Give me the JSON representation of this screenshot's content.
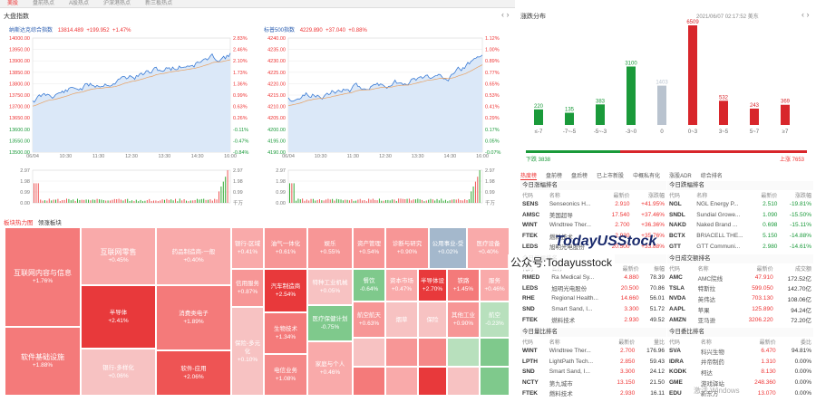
{
  "tabs": [
    "美股",
    "盘前热点",
    "A股热点",
    "沪深港热点",
    "新三板热点"
  ],
  "main_title": "大盘指数",
  "nasdaq": {
    "name": "纳斯达克综合指数",
    "price": "13814.489",
    "change": "+199.952",
    "pct": "+1.47%",
    "y_left": [
      "14000.00",
      "13950.00",
      "13900.00",
      "13850.00",
      "13800.00",
      "13750.00",
      "13700.00",
      "13650.00",
      "13600.00",
      "13550.00",
      "13500.00"
    ],
    "y_right": [
      "2.83%",
      "2.46%",
      "2.10%",
      "1.73%",
      "1.36%",
      "0.99%",
      "0.63%",
      "0.26%",
      "-0.11%",
      "-0.47%",
      "-0.84%"
    ],
    "vol_left": [
      "2.97",
      "1.98",
      "0.99",
      "0.00"
    ],
    "vol_right": [
      "2.97",
      "1.98",
      "0.99",
      "千万"
    ]
  },
  "sp500": {
    "name": "标普500指数",
    "price": "4229.890",
    "change": "+37.040",
    "pct": "+0.88%",
    "y_left": [
      "4240.00",
      "4235.00",
      "4230.00",
      "4225.00",
      "4220.00",
      "4215.00",
      "4210.00",
      "4205.00",
      "4200.00",
      "4195.00",
      "4190.00"
    ],
    "y_right": [
      "1.12%",
      "1.00%",
      "0.89%",
      "0.77%",
      "0.65%",
      "0.53%",
      "0.41%",
      "0.29%",
      "0.17%",
      "0.05%",
      "-0.07%"
    ],
    "vol_left": [
      "2.97",
      "1.98",
      "0.99",
      "0.00"
    ],
    "vol_right": [
      "2.97",
      "1.98",
      "0.99",
      "千万"
    ]
  },
  "x_ticks": [
    "06/04",
    "10:30",
    "11:30",
    "12:30",
    "13:30",
    "14:30",
    "16:00"
  ],
  "sector": {
    "tab1": "板块热力图",
    "tab2": "领涨板块"
  },
  "treemap": [
    {
      "name": "互联网内容与信息",
      "pct": "+1.76%",
      "color": "#f47a7a",
      "big": true
    },
    {
      "name": "软件基础设施",
      "pct": "+1.88%",
      "color": "#f47a7a",
      "big": true
    },
    {
      "name": "互联网零售",
      "pct": "+0.45%",
      "color": "#f9aaaa",
      "big": true
    },
    {
      "name": "半导体",
      "pct": "+2.41%",
      "color": "#e8393b"
    },
    {
      "name": "银行-多样化",
      "pct": "+0.06%",
      "color": "#f7c2c2"
    },
    {
      "name": "药品制造商-一般",
      "pct": "+0.40%",
      "color": "#f9aaaa"
    },
    {
      "name": "消费类电子",
      "pct": "+1.89%",
      "color": "#f47a7a"
    },
    {
      "name": "软件-应用",
      "pct": "+2.06%",
      "color": "#ee5454"
    },
    {
      "name": "银行-区域",
      "pct": "+0.41%",
      "color": "#f9aaaa"
    },
    {
      "name": "信用服务",
      "pct": "+0.87%",
      "color": "#f79696"
    },
    {
      "name": "保险-多元化",
      "pct": "+0.10%",
      "color": "#f7c2c2"
    },
    {
      "name": "油气一体化",
      "pct": "+0.61%",
      "color": "#f79696"
    },
    {
      "name": "汽车制造商",
      "pct": "+2.54%",
      "color": "#e8393b"
    },
    {
      "name": "生物技术",
      "pct": "+1.34%",
      "color": "#f47a7a"
    },
    {
      "name": "电信业务",
      "pct": "+1.08%",
      "color": "#f58888"
    },
    {
      "name": "娱乐",
      "pct": "+0.55%",
      "color": "#f79696"
    },
    {
      "name": "特种工业机械",
      "pct": "+0.05%",
      "color": "#f7c2c2"
    },
    {
      "name": "资产管理",
      "pct": "+0.54%",
      "color": "#f79696"
    },
    {
      "name": "诊断与研究",
      "pct": "+0.90%",
      "color": "#f79696"
    },
    {
      "name": "公用事业-受",
      "pct": "+0.02%",
      "color": "#a4b8cc"
    },
    {
      "name": "医疗设备",
      "pct": "+0.40%",
      "color": "#f9aaaa"
    },
    {
      "name": "餐饮",
      "pct": "-0.64%",
      "color": "#7fc98c"
    },
    {
      "name": "资本市场",
      "pct": "+0.47%",
      "color": "#f9aaaa"
    },
    {
      "name": "医疗保健计划",
      "pct": "-0.75%",
      "color": "#7fc98c"
    },
    {
      "name": "半导体设",
      "pct": "+2.70%",
      "color": "#e8393b"
    },
    {
      "name": "铁路",
      "pct": "+1.45%",
      "color": "#f47a7a"
    },
    {
      "name": "服务",
      "pct": "+0.46%",
      "color": "#f9aaaa"
    },
    {
      "name": "航空航天",
      "pct": "+0.63%",
      "color": "#f79696"
    },
    {
      "name": "家庭与个人",
      "pct": "+0.46%",
      "color": "#f9aaaa"
    },
    {
      "name": "烟草",
      "pct": "",
      "color": "#f7c2c2"
    },
    {
      "name": "保险",
      "pct": "",
      "color": "#f7c2c2"
    },
    {
      "name": "其他工业",
      "pct": "+0.90%",
      "color": "#f79696"
    },
    {
      "name": "航空",
      "pct": "-0.23%",
      "color": "#b8e0bd"
    }
  ],
  "dist": {
    "title": "涨跌分布",
    "datetime": "2021/06/07 02:17:52 美东",
    "bars": [
      {
        "label": "≤-7",
        "value": 220,
        "color": "#1a9a3a"
      },
      {
        "label": "-7~-5",
        "value": 135,
        "color": "#1a9a3a"
      },
      {
        "label": "-5~-3",
        "value": 383,
        "color": "#1a9a3a"
      },
      {
        "label": "-3~0",
        "value": 3100,
        "color": "#1a9a3a"
      },
      {
        "label": "0",
        "value": 1403,
        "color": "#b9c3cf"
      },
      {
        "label": "0~3",
        "value": 6509,
        "color": "#d8262b"
      },
      {
        "label": "3~5",
        "value": 532,
        "color": "#d8262b"
      },
      {
        "label": "5~7",
        "value": 243,
        "color": "#d8262b"
      },
      {
        "label": "≥7",
        "value": 369,
        "color": "#d8262b"
      }
    ],
    "down_label": "下跌 3838",
    "up_label": "上涨 7653"
  },
  "right_tabs": [
    "热度榜",
    "盘前榜",
    "盘后榜",
    "已上市新股",
    "中概私有化",
    "涨股ADR",
    "综合排名"
  ],
  "boxes": [
    {
      "title": "今日涨幅排名",
      "cols": [
        "代码",
        "名称",
        "最新价",
        "涨跌幅"
      ],
      "rows": [
        [
          "SENS",
          "Senseonics H...",
          "2.910",
          "+41.95%"
        ],
        [
          "AMSC",
          "美国超导",
          "17.540",
          "+37.46%"
        ],
        [
          "WINT",
          "Windtree Ther...",
          "2.700",
          "+36.36%"
        ],
        [
          "FTEK",
          "燃料技术",
          "2.930",
          "+35.76%"
        ],
        [
          "LEDS",
          "旭明光电股份",
          "20.500",
          "+33.88%"
        ]
      ]
    },
    {
      "title": "今日跌幅排名",
      "cols": [
        "代码",
        "名称",
        "最新价",
        "涨跌幅"
      ],
      "rows": [
        [
          "NGL",
          "NGL Energy P...",
          "2.510",
          "-19.81%"
        ],
        [
          "SNDL",
          "Sundial Growe...",
          "1.090",
          "-15.50%"
        ],
        [
          "NAKD",
          "Naked Brand ...",
          "0.698",
          "-15.11%"
        ],
        [
          "BCTX",
          "BRIACELL THE...",
          "5.150",
          "-14.88%"
        ],
        [
          "GTT",
          "GTT Communi...",
          "2.980",
          "-14.61%"
        ]
      ]
    },
    {
      "title": "今日振幅排名",
      "cols": [
        "代码",
        "名称",
        "最新价",
        "振幅"
      ],
      "rows": [
        [
          "RMED",
          "Ra Medical Sy...",
          "4.880",
          "78.39"
        ],
        [
          "LEDS",
          "旭明光电股份",
          "20.500",
          "70.86"
        ],
        [
          "RHE",
          "Regional Health...",
          "14.660",
          "56.01"
        ],
        [
          "SND",
          "Smart Sand, I...",
          "3.300",
          "51.72"
        ],
        [
          "FTEK",
          "燃料技术",
          "2.930",
          "49.52"
        ]
      ]
    },
    {
      "title": "今日成交额排名",
      "cols": [
        "代码",
        "名称",
        "最新价",
        "成交额"
      ],
      "rows": [
        [
          "AMC",
          "AMC院线",
          "47.910",
          "172.52亿"
        ],
        [
          "TSLA",
          "特斯拉",
          "599.050",
          "142.70亿"
        ],
        [
          "NVDA",
          "英伟达",
          "703.130",
          "108.06亿"
        ],
        [
          "AAPL",
          "苹果",
          "125.890",
          "94.24亿"
        ],
        [
          "AMZN",
          "亚马逊",
          "3206.220",
          "72.20亿"
        ]
      ]
    },
    {
      "title": "今日量比排名",
      "cols": [
        "代码",
        "名称",
        "最新价",
        "量比"
      ],
      "rows": [
        [
          "WINT",
          "Windtree Ther...",
          "2.700",
          "176.96"
        ],
        [
          "LPTH",
          "LightPath Tech...",
          "2.850",
          "59.43"
        ],
        [
          "SND",
          "Smart Sand, I...",
          "3.300",
          "24.12"
        ],
        [
          "NCTY",
          "第九城市",
          "13.150",
          "21.50"
        ],
        [
          "FTEK",
          "燃料技术",
          "2.930",
          "16.11"
        ]
      ]
    },
    {
      "title": "今日委比排名",
      "cols": [
        "代码",
        "名称",
        "最新价",
        "委比"
      ],
      "rows": [
        [
          "SVA",
          "科兴生物",
          "6.470",
          "94.81%"
        ],
        [
          "IDRA",
          "井帝制药",
          "1.310",
          "0.00%"
        ],
        [
          "KODK",
          "柯达",
          "8.130",
          "0.00%"
        ],
        [
          "GME",
          "游戏驿站",
          "248.360",
          "0.00%"
        ],
        [
          "EDU",
          "新东方",
          "13.070",
          "0.00%"
        ]
      ]
    }
  ],
  "watermark": {
    "logo": "TodayUSStock",
    "wechat": "公众号:Todayusstock",
    "windows": "激活 Windows"
  }
}
